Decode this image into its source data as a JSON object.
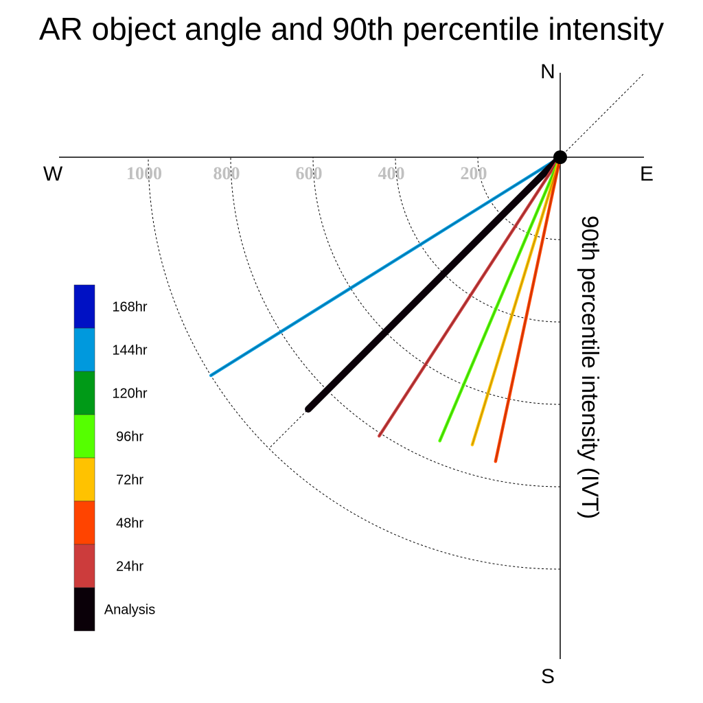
{
  "chart_data": {
    "type": "polar-vector",
    "title": "AR object angle and 90th percentile intensity",
    "ylabel": "90th percentile intensity (IVT)",
    "compass": {
      "north": "N",
      "south": "S",
      "east": "E",
      "west": "W"
    },
    "radial_ticks": [
      "200",
      "400",
      "600",
      "800",
      "1000"
    ],
    "radial_tick_values": [
      200,
      400,
      600,
      800,
      1000
    ],
    "rmax": 1200,
    "vectors": [
      {
        "name": "144hr",
        "angle_deg": 238,
        "intensity": 1000,
        "color": "#0099dd"
      },
      {
        "name": "Analysis",
        "angle_deg": 225,
        "intensity": 865,
        "color": "#0a0008"
      },
      {
        "name": "24hr",
        "angle_deg": 213,
        "intensity": 807,
        "color": "#cc3c3c"
      },
      {
        "name": "96hr",
        "angle_deg": 203,
        "intensity": 748,
        "color": "#55ff00"
      },
      {
        "name": "72hr",
        "angle_deg": 197,
        "intensity": 730,
        "color": "#ffc200"
      },
      {
        "name": "48hr",
        "angle_deg": 192,
        "intensity": 755,
        "color": "#ff4400"
      }
    ],
    "legend": [
      {
        "label": "168hr",
        "color": "#0011c4"
      },
      {
        "label": "144hr",
        "color": "#0099dd"
      },
      {
        "label": "120hr",
        "color": "#009a17"
      },
      {
        "label": "96hr",
        "color": "#55ff00"
      },
      {
        "label": "72hr",
        "color": "#ffc200"
      },
      {
        "label": "48hr",
        "color": "#ff4400"
      },
      {
        "label": "24hr",
        "color": "#cc3c3c"
      },
      {
        "label": "Analysis",
        "color": "#0a0008"
      }
    ]
  }
}
